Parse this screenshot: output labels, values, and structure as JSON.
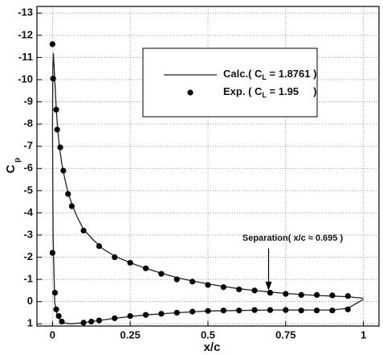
{
  "chart_data": {
    "type": "line",
    "xlabel": "x/c",
    "ylabel": "C",
    "ylabel_sub": "p",
    "xlim": [
      -0.05,
      1.05
    ],
    "ylim": [
      1.1,
      -13.3
    ],
    "xticks": [
      0,
      0.25,
      0.5,
      0.75,
      1
    ],
    "yticks": [
      1,
      0,
      -1,
      -2,
      -3,
      -4,
      -5,
      -6,
      -7,
      -8,
      -9,
      -10,
      -11,
      -12,
      -13
    ],
    "grid": true,
    "legend": "upper-center",
    "series": [
      {
        "name": "Calc.( CL = 1.8761 )",
        "type": "line",
        "color": "#222222",
        "x": [
          1.0,
          0.95,
          0.9,
          0.8,
          0.7,
          0.6,
          0.5,
          0.4,
          0.3,
          0.2,
          0.15,
          0.1,
          0.06,
          0.03,
          0.015,
          0.007,
          0.002,
          0.0,
          0.001,
          0.003,
          0.008,
          0.012,
          0.016,
          0.022,
          0.03,
          0.04,
          0.05,
          0.065,
          0.08,
          0.1,
          0.13,
          0.16,
          0.2,
          0.25,
          0.3,
          0.35,
          0.4,
          0.45,
          0.5,
          0.55,
          0.6,
          0.65,
          0.7,
          0.75,
          0.8,
          0.85,
          0.9,
          0.95,
          1.0
        ],
        "values": [
          -0.1,
          0.3,
          0.38,
          0.38,
          0.38,
          0.4,
          0.42,
          0.5,
          0.6,
          0.75,
          0.85,
          0.95,
          1.0,
          0.95,
          0.6,
          0.0,
          -3.0,
          -8.0,
          -10.5,
          -11.2,
          -9.8,
          -8.7,
          -7.9,
          -7.0,
          -6.2,
          -5.5,
          -4.9,
          -4.3,
          -3.8,
          -3.25,
          -2.8,
          -2.4,
          -2.05,
          -1.75,
          -1.5,
          -1.28,
          -1.08,
          -0.93,
          -0.8,
          -0.68,
          -0.58,
          -0.5,
          -0.43,
          -0.37,
          -0.32,
          -0.28,
          -0.25,
          -0.22,
          -0.15
        ]
      },
      {
        "name": "Exp. ( CL = 1.95     )",
        "type": "scatter",
        "color": "#000000",
        "x": [
          0,
          0.002,
          0.012,
          0.015,
          0.025,
          0.035,
          0.05,
          0.062,
          0.1,
          0.15,
          0.2,
          0.25,
          0.3,
          0.35,
          0.4,
          0.45,
          0.5,
          0.55,
          0.6,
          0.65,
          0.7,
          0.75,
          0.8,
          0.85,
          0.9,
          0.95,
          0,
          0.008,
          0.012,
          0.02,
          0.03,
          0.1,
          0.125,
          0.15,
          0.2,
          0.25,
          0.3,
          0.35,
          0.4,
          0.45,
          0.5,
          0.55,
          0.6,
          0.65,
          0.7,
          0.75,
          0.8,
          0.85,
          0.9,
          0.95
        ],
        "values": [
          -11.6,
          -10.05,
          -8.65,
          -7.75,
          -6.95,
          -5.9,
          -4.85,
          -4.3,
          -3.2,
          -2.5,
          -2.0,
          -1.75,
          -1.5,
          -1.25,
          -1.0,
          -0.9,
          -0.75,
          -0.65,
          -0.55,
          -0.5,
          -0.4,
          -0.35,
          -0.3,
          -0.3,
          -0.28,
          -0.25,
          -2.2,
          -0.4,
          0.35,
          0.65,
          0.9,
          0.95,
          0.9,
          0.85,
          0.75,
          0.65,
          0.6,
          0.55,
          0.5,
          0.45,
          0.42,
          0.4,
          0.4,
          0.38,
          0.38,
          0.38,
          0.4,
          0.4,
          0.4,
          0.35
        ]
      }
    ],
    "annotation": {
      "text": "Separation( x/c ≈ 0.695 )",
      "x": 0.695
    }
  }
}
